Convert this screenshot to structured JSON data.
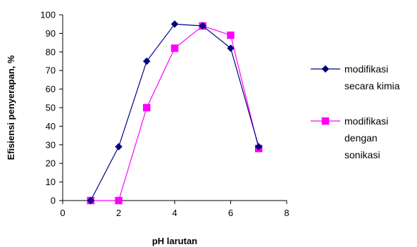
{
  "chart_data": {
    "type": "line",
    "xlabel": "pH larutan",
    "ylabel": "Efisiensi penyerapan, %",
    "xlim": [
      0,
      8
    ],
    "ylim": [
      0,
      100
    ],
    "xticks": [
      0,
      2,
      4,
      6,
      8
    ],
    "yticks": [
      0,
      10,
      20,
      30,
      40,
      50,
      60,
      70,
      80,
      90,
      100
    ],
    "grid": false,
    "legend_position": "right",
    "series": [
      {
        "name_lines": [
          "modifikasi",
          "secara kimia"
        ],
        "color": "#000080",
        "marker": "diamond",
        "x": [
          1,
          2,
          3,
          4,
          5,
          6,
          7
        ],
        "y": [
          0,
          29,
          75,
          95,
          94,
          82,
          29
        ]
      },
      {
        "name_lines": [
          "modifikasi",
          "dengan",
          "sonikasi"
        ],
        "color": "#ff00ff",
        "marker": "square",
        "x": [
          1,
          2,
          3,
          4,
          5,
          6,
          7
        ],
        "y": [
          0,
          0,
          50,
          82,
          94,
          89,
          28
        ]
      }
    ]
  }
}
